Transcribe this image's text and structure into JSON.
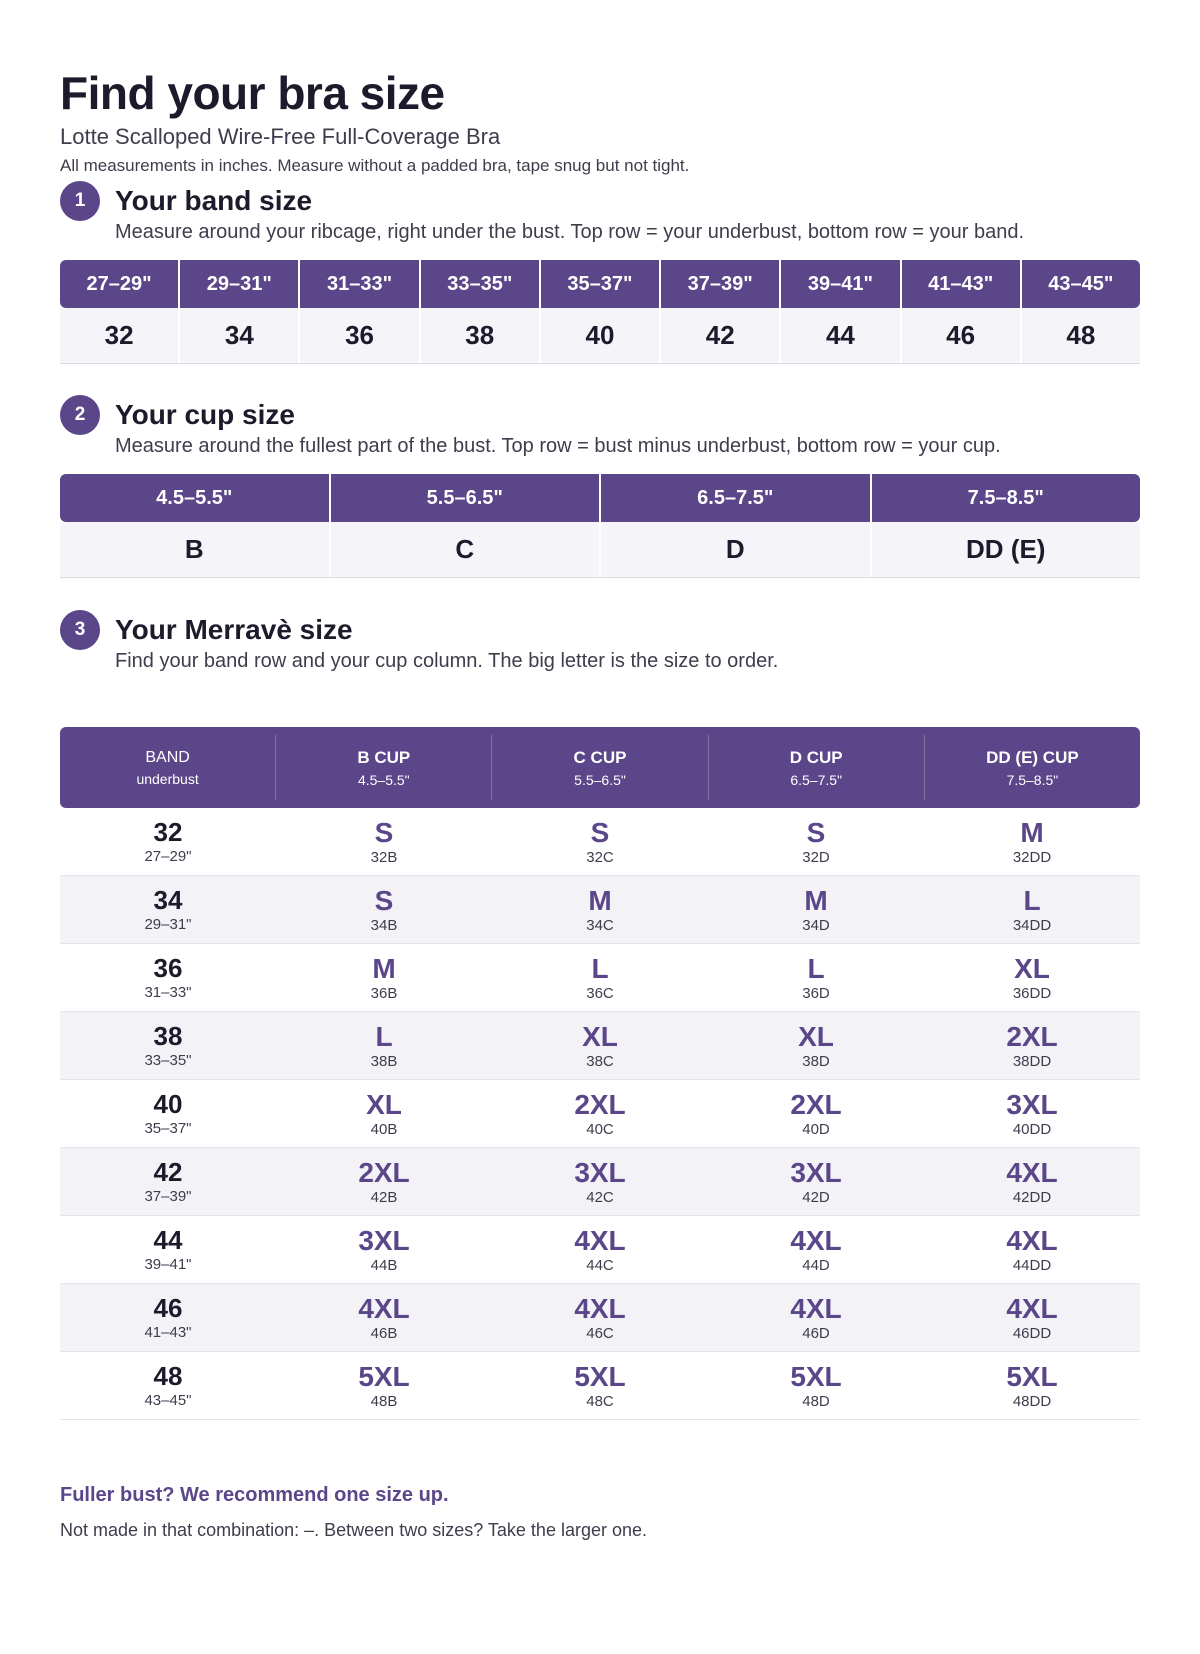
{
  "header": {
    "title": "Find your bra size",
    "subtitle": "Lotte Scalloped Wire-Free Full-Coverage Bra",
    "note": "All measurements in inches. Measure without a padded bra, tape snug but not tight."
  },
  "band_section": {
    "number": "1",
    "title": "Your band size",
    "description": "Measure around your ribcage, right under the bust. Top row = your underbust, bottom row = your band.",
    "ranges": [
      "27–29\"",
      "29–31\"",
      "31–33\"",
      "33–35\"",
      "35–37\"",
      "37–39\"",
      "39–41\"",
      "41–43\"",
      "43–45\""
    ],
    "bands": [
      "32",
      "34",
      "36",
      "38",
      "40",
      "42",
      "44",
      "46",
      "48"
    ]
  },
  "cup_section": {
    "number": "2",
    "title": "Your cup size",
    "description": "Measure around the fullest part of the bust. Top row = bust minus underbust, bottom row = your cup.",
    "ranges": [
      "4.5–5.5\"",
      "5.5–6.5\"",
      "6.5–7.5\"",
      "7.5–8.5\""
    ],
    "cups": [
      "B",
      "C",
      "D",
      "DD (E)"
    ]
  },
  "size_section": {
    "number": "3",
    "title": "Your Merravè size",
    "description": "Find your band row and your cup column. The big letter is the size to order.",
    "columns": [
      {
        "label": "BAND",
        "sub": "underbust"
      },
      {
        "label": "B CUP",
        "sub": "4.5–5.5\""
      },
      {
        "label": "C CUP",
        "sub": "5.5–6.5\""
      },
      {
        "label": "D CUP",
        "sub": "6.5–7.5\""
      },
      {
        "label": "DD (E) CUP",
        "sub": "7.5–8.5\""
      }
    ],
    "rows": [
      {
        "band": "32",
        "range": "27–29\"",
        "cells": [
          {
            "size": "S",
            "code": "32B"
          },
          {
            "size": "S",
            "code": "32C"
          },
          {
            "size": "S",
            "code": "32D"
          },
          {
            "size": "M",
            "code": "32DD"
          }
        ]
      },
      {
        "band": "34",
        "range": "29–31\"",
        "cells": [
          {
            "size": "S",
            "code": "34B"
          },
          {
            "size": "M",
            "code": "34C"
          },
          {
            "size": "M",
            "code": "34D"
          },
          {
            "size": "L",
            "code": "34DD"
          }
        ]
      },
      {
        "band": "36",
        "range": "31–33\"",
        "cells": [
          {
            "size": "M",
            "code": "36B"
          },
          {
            "size": "L",
            "code": "36C"
          },
          {
            "size": "L",
            "code": "36D"
          },
          {
            "size": "XL",
            "code": "36DD"
          }
        ]
      },
      {
        "band": "38",
        "range": "33–35\"",
        "cells": [
          {
            "size": "L",
            "code": "38B"
          },
          {
            "size": "XL",
            "code": "38C"
          },
          {
            "size": "XL",
            "code": "38D"
          },
          {
            "size": "2XL",
            "code": "38DD"
          }
        ]
      },
      {
        "band": "40",
        "range": "35–37\"",
        "cells": [
          {
            "size": "XL",
            "code": "40B"
          },
          {
            "size": "2XL",
            "code": "40C"
          },
          {
            "size": "2XL",
            "code": "40D"
          },
          {
            "size": "3XL",
            "code": "40DD"
          }
        ]
      },
      {
        "band": "42",
        "range": "37–39\"",
        "cells": [
          {
            "size": "2XL",
            "code": "42B"
          },
          {
            "size": "3XL",
            "code": "42C"
          },
          {
            "size": "3XL",
            "code": "42D"
          },
          {
            "size": "4XL",
            "code": "42DD"
          }
        ]
      },
      {
        "band": "44",
        "range": "39–41\"",
        "cells": [
          {
            "size": "3XL",
            "code": "44B"
          },
          {
            "size": "4XL",
            "code": "44C"
          },
          {
            "size": "4XL",
            "code": "44D"
          },
          {
            "size": "4XL",
            "code": "44DD"
          }
        ]
      },
      {
        "band": "46",
        "range": "41–43\"",
        "cells": [
          {
            "size": "4XL",
            "code": "46B"
          },
          {
            "size": "4XL",
            "code": "46C"
          },
          {
            "size": "4XL",
            "code": "46D"
          },
          {
            "size": "4XL",
            "code": "46DD"
          }
        ]
      },
      {
        "band": "48",
        "range": "43–45\"",
        "cells": [
          {
            "size": "5XL",
            "code": "48B"
          },
          {
            "size": "5XL",
            "code": "48C"
          },
          {
            "size": "5XL",
            "code": "48D"
          },
          {
            "size": "5XL",
            "code": "48DD"
          }
        ]
      }
    ]
  },
  "footer": {
    "tip": "Fuller bust? We recommend one size up.",
    "note": "Not made in that combination: –.  Between two sizes? Take the larger one."
  },
  "colors": {
    "accent": "#5a4689",
    "text": "#1c1a2b",
    "row_alt": "#f3f2f7"
  }
}
